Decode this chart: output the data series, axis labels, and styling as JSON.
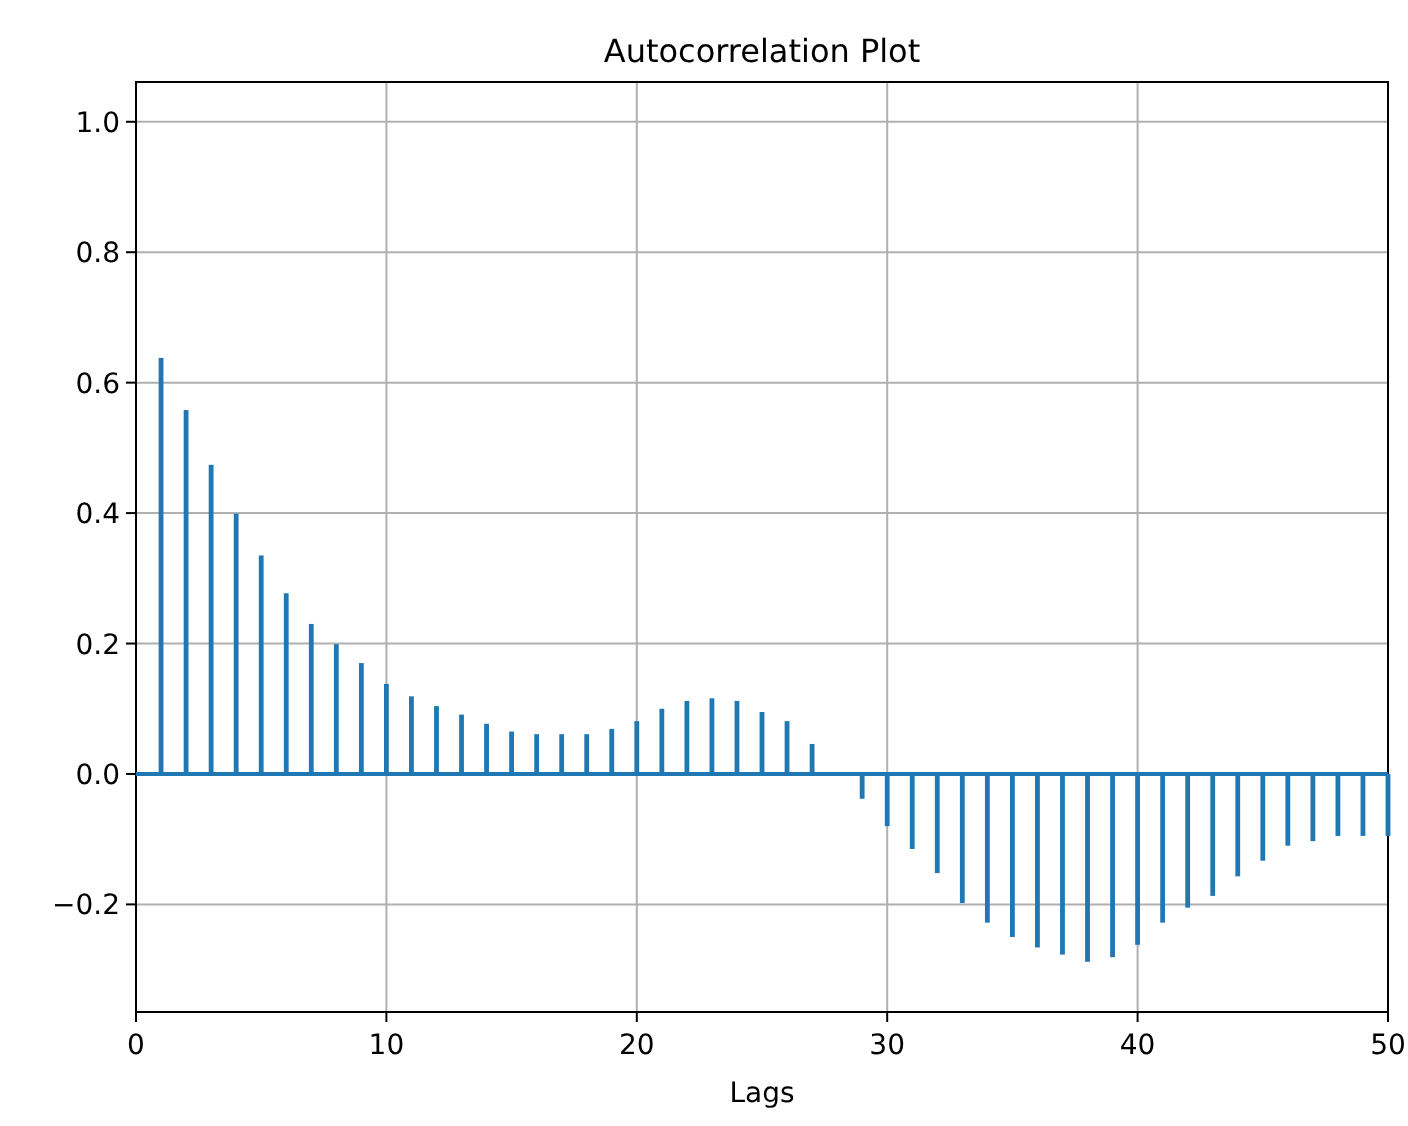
{
  "chart_data": {
    "type": "bar",
    "title": "Autocorrelation Plot",
    "xlabel": "Lags",
    "x": [
      1,
      2,
      3,
      4,
      5,
      6,
      7,
      8,
      9,
      10,
      11,
      12,
      13,
      14,
      15,
      16,
      17,
      18,
      19,
      20,
      21,
      22,
      23,
      24,
      25,
      26,
      27,
      28,
      29,
      30,
      31,
      32,
      33,
      34,
      35,
      36,
      37,
      38,
      39,
      40,
      41,
      42,
      43,
      44,
      45,
      46,
      47,
      48,
      49,
      50
    ],
    "values": [
      0.638,
      0.558,
      0.474,
      0.399,
      0.335,
      0.277,
      0.23,
      0.199,
      0.17,
      0.138,
      0.119,
      0.104,
      0.091,
      0.077,
      0.065,
      0.061,
      0.061,
      0.061,
      0.069,
      0.081,
      0.1,
      0.112,
      0.116,
      0.112,
      0.095,
      0.081,
      0.046,
      0.0,
      -0.038,
      -0.08,
      -0.115,
      -0.152,
      -0.198,
      -0.228,
      -0.25,
      -0.266,
      -0.277,
      -0.288,
      -0.281,
      -0.262,
      -0.228,
      -0.205,
      -0.187,
      -0.157,
      -0.133,
      -0.11,
      -0.103,
      -0.095,
      -0.095,
      -0.095
    ],
    "color": "#1f77b4",
    "xlim": [
      0,
      50
    ],
    "xticks": [
      0,
      10,
      20,
      30,
      40,
      50
    ],
    "ylim": [
      -0.365,
      1.061
    ],
    "yticks": [
      {
        "value": -0.2,
        "label": "−0.2"
      },
      {
        "value": 0,
        "label": "0.0"
      },
      {
        "value": 0.2,
        "label": "0.2"
      },
      {
        "value": 0.4,
        "label": "0.4"
      },
      {
        "value": 0.6,
        "label": "0.6"
      },
      {
        "value": 0.8,
        "label": "0.8"
      },
      {
        "value": 1,
        "label": "1.0"
      }
    ],
    "ref_lines": [
      {
        "axis": "y",
        "value": 0,
        "color": "#1f77b4"
      }
    ],
    "grid": true
  }
}
